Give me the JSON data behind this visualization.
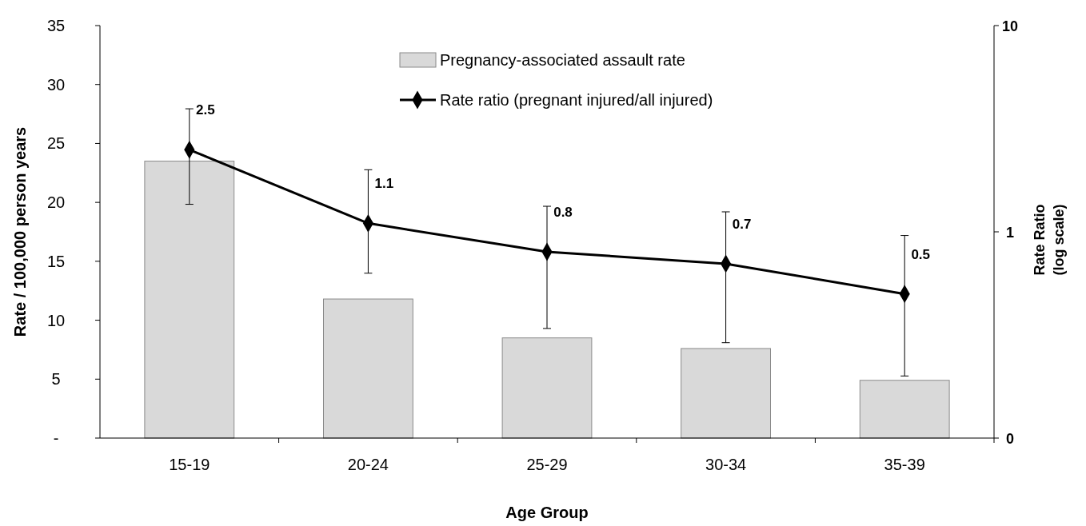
{
  "chart_data": {
    "type": "bar",
    "xlabel": "Age Group",
    "ylabel": "Rate / 100,000 person years",
    "y2label": "Rate Ratio (log scale)",
    "categories": [
      "15-19",
      "20-24",
      "25-29",
      "30-34",
      "35-39"
    ],
    "ylim": [
      0,
      35
    ],
    "yticks": [
      {
        "value": 0,
        "label": "-"
      },
      5,
      10,
      15,
      20,
      25,
      30,
      35
    ],
    "y2lim": [
      0.1,
      10
    ],
    "y2ticks": [
      {
        "value": 0.1,
        "label": "0"
      },
      1,
      10
    ],
    "log": "y2",
    "legend": "top right",
    "marker": "diamond",
    "grid": false,
    "series": [
      {
        "name": "Pregnancy-associated assault rate",
        "color": "#d9d9d9",
        "values": [
          23.5,
          11.8,
          8.5,
          7.6,
          4.9
        ]
      },
      {
        "name": "Rate ratio (pregnant injured/all injured)",
        "type": "line",
        "axis": "y2",
        "color": "#000000",
        "values": [
          2.5,
          1.1,
          0.8,
          0.7,
          0.5
        ],
        "value_labels": [
          "2.5",
          "1.1",
          "0.8",
          "0.7",
          "0.5"
        ],
        "errors": [
          [
            1.36,
            3.95
          ],
          [
            0.63,
            2.0
          ],
          [
            0.34,
            1.33
          ],
          [
            0.29,
            1.25
          ],
          [
            0.2,
            0.96
          ]
        ]
      }
    ]
  }
}
